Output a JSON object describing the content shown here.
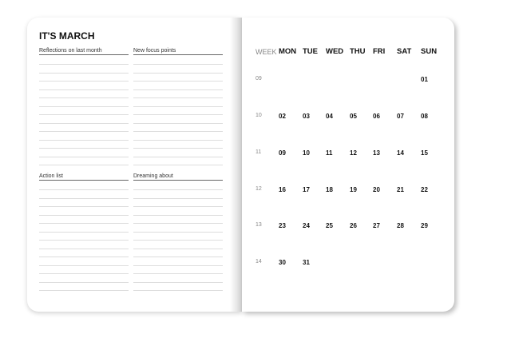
{
  "left_page": {
    "title": "IT'S MARCH",
    "sections": [
      {
        "label": "Reflections on last month"
      },
      {
        "label": "New focus points"
      },
      {
        "label": "Action list"
      },
      {
        "label": "Dreaming about"
      }
    ]
  },
  "calendar": {
    "week_label": "WEEK",
    "days": [
      "MON",
      "TUE",
      "WED",
      "THU",
      "FRI",
      "SAT",
      "SUN"
    ],
    "weeks": [
      {
        "week": "09",
        "dates": [
          "",
          "",
          "",
          "",
          "",
          "",
          "01"
        ]
      },
      {
        "week": "10",
        "dates": [
          "02",
          "03",
          "04",
          "05",
          "06",
          "07",
          "08"
        ]
      },
      {
        "week": "11",
        "dates": [
          "09",
          "10",
          "11",
          "12",
          "13",
          "14",
          "15"
        ]
      },
      {
        "week": "12",
        "dates": [
          "16",
          "17",
          "18",
          "19",
          "20",
          "21",
          "22"
        ]
      },
      {
        "week": "13",
        "dates": [
          "23",
          "24",
          "25",
          "26",
          "27",
          "28",
          "29"
        ]
      },
      {
        "week": "14",
        "dates": [
          "30",
          "31",
          "",
          "",
          "",
          "",
          ""
        ]
      }
    ]
  }
}
